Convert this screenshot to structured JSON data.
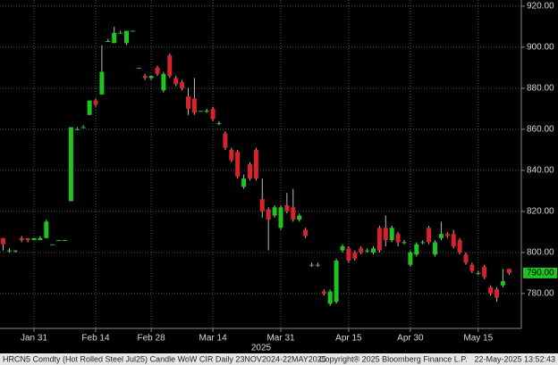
{
  "chart_data": {
    "type": "candlestick",
    "categories": [
      null,
      null,
      null,
      null,
      null,
      "Jan 31",
      null,
      null,
      null,
      null,
      null,
      null,
      null,
      null,
      null,
      "Feb 14",
      null,
      null,
      null,
      null,
      null,
      null,
      null,
      null,
      "Feb 28",
      null,
      null,
      null,
      null,
      null,
      null,
      null,
      null,
      null,
      "Mar 14",
      null,
      null,
      null,
      null,
      null,
      null,
      null,
      null,
      null,
      null,
      "Mar 31",
      null,
      null,
      null,
      null,
      null,
      null,
      null,
      null,
      null,
      null,
      "Apr 15",
      null,
      null,
      null,
      null,
      null,
      null,
      null,
      null,
      null,
      "Apr 30",
      null,
      null,
      null,
      null,
      null,
      null,
      null,
      null,
      null,
      null,
      "May 15",
      null,
      null,
      null,
      null,
      null
    ],
    "x_axis_year": "2025",
    "open": [
      807,
      801,
      801,
      807,
      807,
      806,
      806,
      807,
      804,
      806,
      806,
      825,
      860,
      861,
      867,
      874,
      877,
      903,
      902,
      907,
      902,
      908,
      890,
      886,
      885,
      890,
      879,
      896,
      885,
      883,
      876,
      875,
      869,
      869,
      870,
      863,
      858,
      850,
      849,
      832,
      843,
      850,
      826,
      821,
      818,
      812,
      823,
      822,
      816,
      811,
      794,
      794,
      781,
      775,
      776,
      801,
      802,
      800,
      802,
      801,
      800,
      812,
      812,
      806,
      809,
      805,
      794,
      799,
      805,
      812,
      799,
      807,
      809,
      809,
      806,
      799,
      794,
      790,
      793,
      783,
      782,
      784,
      792
    ],
    "high": [
      807,
      802,
      801,
      808,
      807,
      807,
      808,
      816,
      804,
      806,
      806,
      861,
      861,
      862,
      874,
      875,
      901,
      904,
      910,
      908,
      908,
      908,
      890,
      887,
      886,
      891,
      888,
      897,
      886,
      884,
      880,
      885,
      869,
      870,
      871,
      864,
      859,
      851,
      850,
      838,
      844,
      851,
      836,
      822,
      823,
      823,
      829,
      831,
      819,
      812,
      795,
      795,
      782,
      782,
      797,
      804,
      803,
      801,
      803,
      802,
      803,
      813,
      818,
      813,
      810,
      806,
      801,
      805,
      806,
      813,
      806,
      815,
      810,
      811,
      807,
      800,
      795,
      791,
      794,
      784,
      783,
      792,
      792
    ],
    "low": [
      801,
      800,
      800,
      805,
      805,
      806,
      806,
      807,
      804,
      806,
      806,
      825,
      860,
      861,
      867,
      871,
      877,
      903,
      902,
      907,
      901,
      908,
      890,
      884,
      884,
      886,
      878,
      885,
      881,
      879,
      867,
      867,
      869,
      868,
      864,
      862,
      850,
      844,
      836,
      831,
      835,
      835,
      817,
      801,
      817,
      811,
      819,
      815,
      815,
      807,
      793,
      793,
      779,
      774,
      775,
      800,
      795,
      796,
      799,
      800,
      799,
      800,
      803,
      805,
      803,
      804,
      793,
      798,
      804,
      804,
      798,
      806,
      807,
      802,
      799,
      794,
      790,
      789,
      787,
      779,
      776,
      783,
      789
    ],
    "close": [
      804,
      801,
      801,
      806,
      806,
      807,
      807,
      815,
      804,
      806,
      806,
      861,
      860,
      861,
      874,
      872,
      888,
      903,
      907,
      907,
      908,
      908,
      890,
      885,
      886,
      887,
      887,
      886,
      882,
      880,
      870,
      868,
      869,
      869,
      865,
      863,
      851,
      845,
      837,
      836,
      836,
      836,
      820,
      816,
      822,
      822,
      820,
      816,
      818,
      808,
      794,
      794,
      780,
      781,
      796,
      803,
      796,
      797,
      800,
      801,
      802,
      801,
      806,
      812,
      805,
      805,
      800,
      804,
      805,
      805,
      805,
      809,
      808,
      803,
      800,
      795,
      791,
      790,
      788,
      780,
      778,
      786,
      790
    ],
    "up_color": "#1fc41f",
    "down_color": "#d8222c",
    "ylim": [
      763,
      923
    ],
    "yticks": [
      {
        "value": 780,
        "label": "780.00"
      },
      {
        "value": 800,
        "label": "800.00"
      },
      {
        "value": 820,
        "label": "820.00"
      },
      {
        "value": 840,
        "label": "840.00"
      },
      {
        "value": 860,
        "label": "860.00"
      },
      {
        "value": 880,
        "label": "880.00"
      },
      {
        "value": 900,
        "label": "900.00"
      },
      {
        "value": 920,
        "label": "920.00"
      }
    ],
    "grid": true,
    "last_price": {
      "value": 790,
      "label": "790.00"
    },
    "footer": {
      "description": "HRCN5 Comdty (Hot Rolled Steel  Jul25) Candle WoW CIR  Daily 23NOV2024-22MAY2025",
      "copyright": "Copyright® 2025 Bloomberg Finance L.P.",
      "timestamp": "22-May-2025 13:52:43"
    }
  }
}
